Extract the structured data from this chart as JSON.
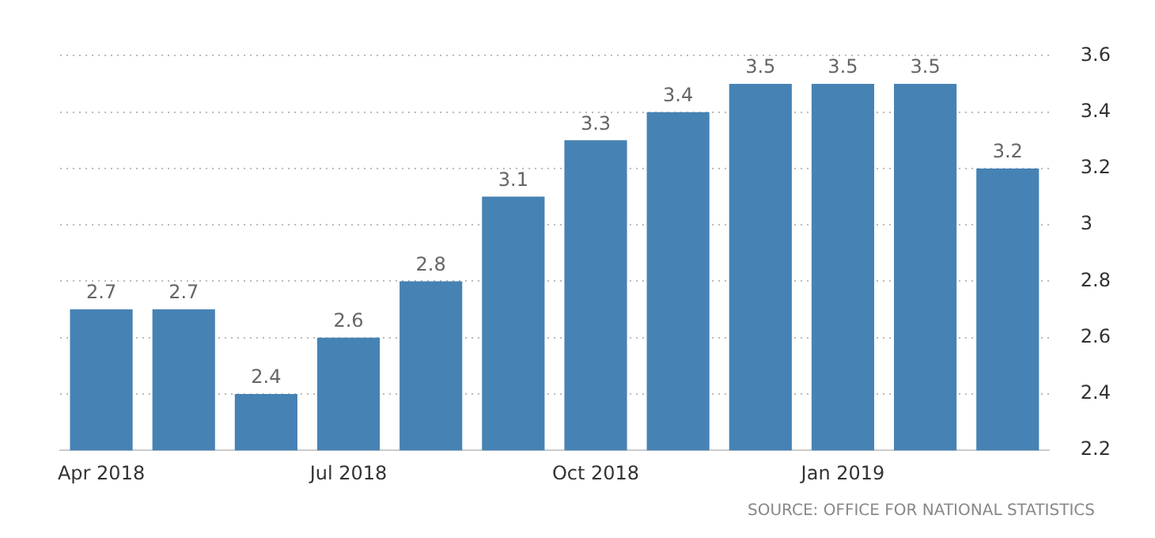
{
  "chart_data": {
    "type": "bar",
    "categories": [
      "Apr 2018",
      null,
      null,
      "Jul 2018",
      null,
      null,
      "Oct 2018",
      null,
      null,
      "Jan 2019",
      null,
      null
    ],
    "values": [
      2.7,
      2.7,
      2.4,
      2.6,
      2.8,
      3.1,
      3.3,
      3.4,
      3.5,
      3.5,
      3.5,
      3.2
    ],
    "color": "#4682b4",
    "ylim": [
      2.2,
      3.6
    ],
    "yticks": [
      2.2,
      2.4,
      2.6,
      2.8,
      3,
      3.2,
      3.4,
      3.6
    ],
    "grid": "y",
    "legend": false,
    "data_labels": true,
    "annotations": [
      "SOURCE: OFFICE FOR NATIONAL STATISTICS"
    ]
  }
}
